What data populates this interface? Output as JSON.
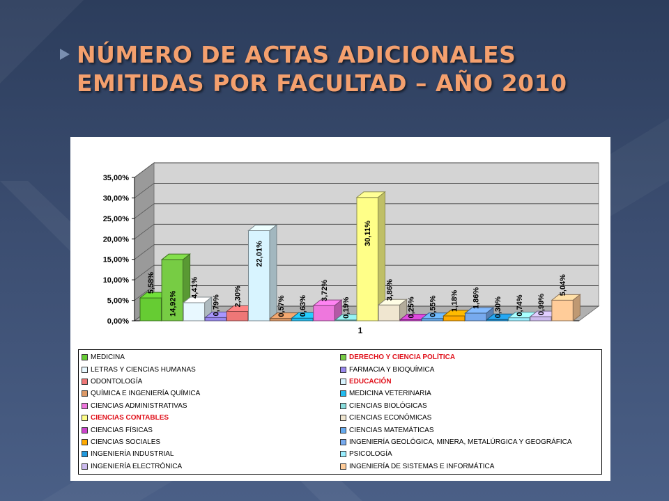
{
  "slide_title": "NÚMERO DE ACTAS ADICIONALES EMITIDAS POR FACULTAD – AÑO 2010",
  "chart_data": {
    "type": "bar",
    "title": "",
    "categories": [
      "1"
    ],
    "ylim": [
      0,
      35
    ],
    "y_ticks": [
      "0,00%",
      "5,00%",
      "10,00%",
      "15,00%",
      "20,00%",
      "25,00%",
      "30,00%",
      "35,00%"
    ],
    "grid": true,
    "legend_position": "bottom",
    "series": [
      {
        "name": "MEDICINA",
        "value": 5.58,
        "label": "5,58%",
        "color": "#66cc33",
        "highlight": false
      },
      {
        "name": "DERECHO Y CIENCIA POLÍTICA",
        "value": 14.92,
        "label": "14,92%",
        "color": "#77cc44",
        "highlight": true
      },
      {
        "name": "LETRAS Y CIENCIAS HUMANAS",
        "value": 4.41,
        "label": "4,41%",
        "color": "#e8f8ff",
        "highlight": false
      },
      {
        "name": "FARMACIA Y BIOQUÍMICA",
        "value": 0.79,
        "label": "0,79%",
        "color": "#9988ee",
        "highlight": false
      },
      {
        "name": "ODONTOLOGÍA",
        "value": 2.3,
        "label": "2,30%",
        "color": "#ee7777",
        "highlight": false
      },
      {
        "name": "EDUCACIÓN",
        "value": 22.01,
        "label": "22,01%",
        "color": "#d8f4ff",
        "highlight": true
      },
      {
        "name": "QUÍMICA E INGENIERÍA QUÍMICA",
        "value": 0.57,
        "label": "0,57%",
        "color": "#dd9966",
        "highlight": false
      },
      {
        "name": "MEDICINA VETERINARIA",
        "value": 0.63,
        "label": "0,63%",
        "color": "#22bbee",
        "highlight": false
      },
      {
        "name": "CIENCIAS ADMINISTRATIVAS",
        "value": 3.72,
        "label": "3,72%",
        "color": "#ee77dd",
        "highlight": false
      },
      {
        "name": "CIENCIAS BIOLÓGICAS",
        "value": 0.19,
        "label": "0,19%",
        "color": "#88dddd",
        "highlight": false
      },
      {
        "name": "CIENCIAS CONTABLES",
        "value": 30.11,
        "label": "30,11%",
        "color": "#ffff88",
        "highlight": true
      },
      {
        "name": "CIENCIAS ECONÓMICAS",
        "value": 3.86,
        "label": "3,86%",
        "color": "#f0e6d0",
        "highlight": false
      },
      {
        "name": "CIENCIAS FÍSICAS",
        "value": 0.25,
        "label": "0,25%",
        "color": "#cc44cc",
        "highlight": false
      },
      {
        "name": "CIENCIAS MATEMÁTICAS",
        "value": 0.55,
        "label": "0,55%",
        "color": "#66aaee",
        "highlight": false
      },
      {
        "name": "CIENCIAS SOCIALES",
        "value": 1.18,
        "label": "1,18%",
        "color": "#ffaa00",
        "highlight": false
      },
      {
        "name": "INGENIERÍA GEOLÓGICA, MINERA, METALÚRGICA Y GEOGRÁFICA",
        "value": 1.86,
        "label": "1,86%",
        "color": "#77aaee",
        "highlight": false
      },
      {
        "name": "INGENIERÍA INDUSTRIAL",
        "value": 0.3,
        "label": "0,30%",
        "color": "#2299dd",
        "highlight": false
      },
      {
        "name": "PSICOLOGÍA",
        "value": 0.74,
        "label": "0,74%",
        "color": "#99eeff",
        "highlight": false
      },
      {
        "name": "INGENIERÍA ELECTRÓNICA",
        "value": 0.99,
        "label": "0,99%",
        "color": "#ccbbee",
        "highlight": false
      },
      {
        "name": "INGENIERÍA DE SISTEMAS E INFORMÁTICA",
        "value": 5.04,
        "label": "5,04%",
        "color": "#ffcc99",
        "highlight": false
      }
    ]
  },
  "colors": {
    "title": "#f4a06e",
    "legend_highlight": "#e0101a",
    "wall": "#d8d8d8",
    "floor": "#b8b8b8"
  }
}
